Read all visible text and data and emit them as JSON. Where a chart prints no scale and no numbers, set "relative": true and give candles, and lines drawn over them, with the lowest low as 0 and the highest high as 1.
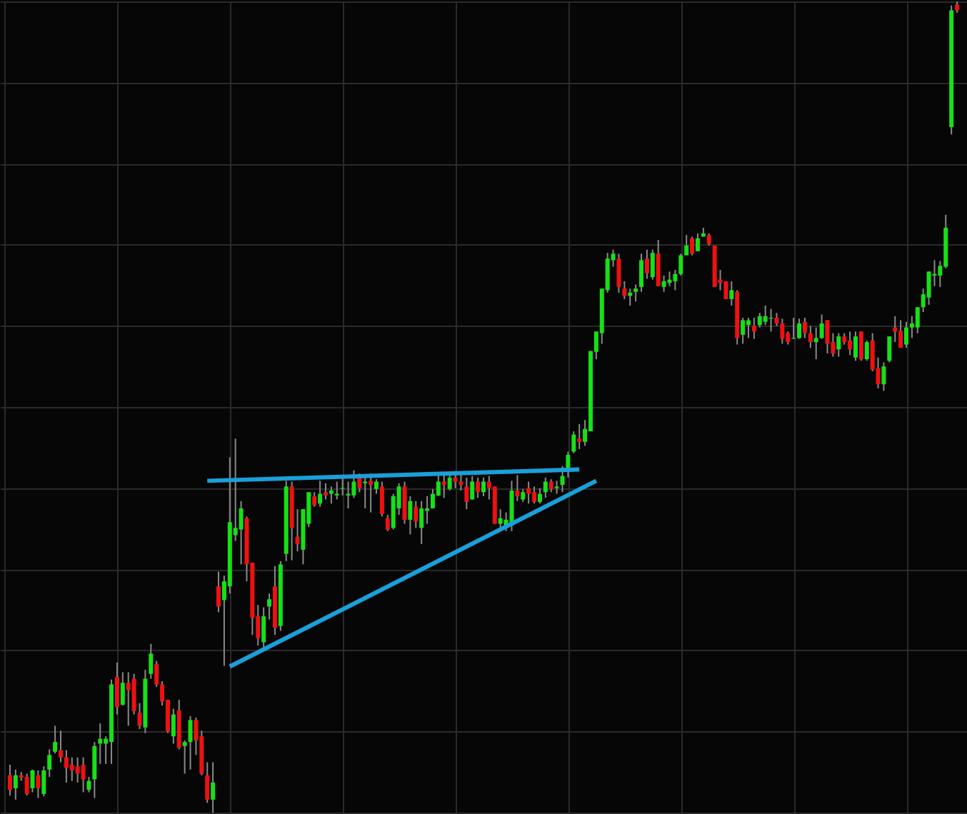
{
  "chart_data": {
    "type": "candlestick",
    "relative": true,
    "grid": true,
    "categories": [
      null,
      null,
      null,
      null,
      null,
      null,
      null,
      null,
      null,
      null,
      null,
      null,
      null,
      null,
      null,
      null,
      null,
      null,
      null,
      null,
      null,
      null,
      null,
      null,
      null,
      null,
      null,
      null,
      null,
      null,
      null,
      null,
      null,
      null,
      null,
      null,
      null,
      null,
      null,
      null,
      null,
      null,
      null,
      null,
      null,
      null,
      null,
      null,
      null,
      null,
      null,
      null,
      null,
      null,
      null,
      null,
      null,
      null,
      null,
      null,
      null,
      null,
      null,
      null,
      null,
      null,
      null,
      null,
      null,
      null,
      null,
      null,
      null,
      null,
      null,
      null,
      null,
      null,
      null,
      null,
      null,
      null,
      null,
      null,
      null,
      null,
      null,
      null,
      null,
      null,
      null,
      null,
      null,
      null,
      null,
      null,
      null,
      null,
      null,
      null,
      null,
      null,
      null,
      null,
      null,
      null,
      null,
      null,
      null,
      null,
      null,
      null,
      null,
      null,
      null,
      null,
      null,
      null,
      null,
      null,
      null,
      null,
      null,
      null,
      null,
      null,
      null,
      null,
      null,
      null,
      null,
      null,
      null,
      null,
      null,
      null,
      null,
      null,
      null,
      null,
      null,
      null,
      null,
      null,
      null,
      null,
      null,
      null,
      null,
      null,
      null,
      null,
      null,
      null,
      null,
      null,
      null,
      null,
      null,
      null,
      null,
      null,
      null,
      null,
      null,
      null,
      null,
      null,
      null
    ],
    "colors": [
      "#ee1111",
      "#16e016",
      "#ee1111",
      "#ee1111",
      "#16e016",
      "#ee1111",
      "#16e016",
      "#16e016",
      "#16e016",
      "#ee1111",
      "#ee1111",
      "#ee1111",
      "#ee1111",
      "#ee1111",
      "#16e016",
      "#16e016",
      "#16e016",
      "#16e016",
      "#16e016",
      "#ee1111",
      "#16e016",
      "#ee1111",
      "#ee1111",
      "#ee1111",
      "#16e016",
      "#16e016",
      "#ee1111",
      "#ee1111",
      "#ee1111",
      "#16e016",
      "#ee1111",
      "#16e016",
      "#16e016",
      "#ee1111",
      "#ee1111",
      "#ee1111",
      "#16e016",
      "#ee1111",
      "#16e016",
      "#16e016",
      "#16e016",
      "#16e016",
      "#ee1111",
      "#ee1111",
      "#ee1111",
      "#16e016",
      "#16e016",
      "#ee1111",
      "#16e016",
      "#16e016",
      "#ee1111",
      "#ee1111",
      "#16e016",
      "#16e016",
      "#ee1111",
      "#16e016",
      "#ee1111",
      "#16e016",
      "#16e016",
      "#16e016",
      "#16e016",
      "#16e016",
      "#ee1111",
      "#16e016",
      "#ee1111",
      "#16e016",
      "#ee1111",
      "#ee1111",
      "#16e016",
      "#16e016",
      "#ee1111",
      "#16e016",
      "#ee1111",
      "#16e016",
      "#16e016",
      "#16e016",
      "#16e016",
      "#ee1111",
      "#16e016",
      "#ee1111",
      "#ee1111",
      "#ee1111",
      "#16e016",
      "#ee1111",
      "#16e016",
      "#ee1111",
      "#ee1111",
      "#16e016",
      "#16e016",
      "#16e016",
      "#ee1111",
      "#16e016",
      "#ee1111",
      "#ee1111",
      "#16e016",
      "#16e016",
      "#ee1111",
      "#16e016",
      "#16e016",
      "#16e016",
      "#16e016",
      "#ee1111",
      "#16e016",
      "#16e016",
      "#16e016",
      "#16e016",
      "#16e016",
      "#16e016",
      "#ee1111",
      "#ee1111",
      "#16e016",
      "#16e016",
      "#16e016",
      "#ee1111",
      "#16e016",
      "#ee1111",
      "#16e016",
      "#16e016",
      "#16e016",
      "#16e016",
      "#16e016",
      "#ee1111",
      "#16e016",
      "#16e016",
      "#ee1111",
      "#ee1111",
      "#ee1111",
      "#ee1111",
      "#16e016",
      "#ee1111",
      "#16e016",
      "#16e016",
      "#ee1111",
      "#16e016",
      "#16e016",
      "#16e016",
      "#ee1111",
      "#ee1111",
      "#ee1111",
      "#16e016",
      "#16e016",
      "#ee1111",
      "#ee1111",
      "#16e016",
      "#16e016",
      "#ee1111",
      "#ee1111",
      "#16e016",
      "#ee1111",
      "#ee1111",
      "#16e016",
      "#ee1111",
      "#16e016",
      "#ee1111",
      "#ee1111",
      "#16e016",
      "#16e016",
      "#ee1111",
      "#ee1111",
      "#16e016",
      "#16e016",
      "#16e016",
      "#16e016",
      "#16e016",
      "#16e016",
      "#16e016",
      "#16e016",
      "#16e016",
      "#ee1111"
    ],
    "ohlc": [
      [
        0.046,
        0.059,
        0.021,
        0.028
      ],
      [
        0.03,
        0.053,
        0.016,
        0.046
      ],
      [
        0.046,
        0.05,
        0.039,
        0.043
      ],
      [
        0.044,
        0.048,
        0.021,
        0.023
      ],
      [
        0.03,
        0.053,
        0.025,
        0.052
      ],
      [
        0.046,
        0.052,
        0.018,
        0.03
      ],
      [
        0.023,
        0.057,
        0.02,
        0.052
      ],
      [
        0.053,
        0.078,
        0.044,
        0.071
      ],
      [
        0.075,
        0.107,
        0.073,
        0.087
      ],
      [
        0.077,
        0.101,
        0.062,
        0.068
      ],
      [
        0.068,
        0.077,
        0.037,
        0.055
      ],
      [
        0.059,
        0.068,
        0.039,
        0.052
      ],
      [
        0.057,
        0.068,
        0.037,
        0.048
      ],
      [
        0.059,
        0.068,
        0.025,
        0.041
      ],
      [
        0.028,
        0.044,
        0.025,
        0.039
      ],
      [
        0.041,
        0.087,
        0.018,
        0.082
      ],
      [
        0.085,
        0.11,
        0.06,
        0.091
      ],
      [
        0.085,
        0.094,
        0.06,
        0.091
      ],
      [
        0.087,
        0.164,
        0.06,
        0.158
      ],
      [
        0.167,
        0.185,
        0.121,
        0.13
      ],
      [
        0.133,
        0.173,
        0.132,
        0.16
      ],
      [
        0.16,
        0.173,
        0.107,
        0.151
      ],
      [
        0.165,
        0.171,
        0.121,
        0.125
      ],
      [
        0.123,
        0.135,
        0.103,
        0.107
      ],
      [
        0.105,
        0.176,
        0.098,
        0.165
      ],
      [
        0.171,
        0.208,
        0.165,
        0.196
      ],
      [
        0.183,
        0.187,
        0.155,
        0.158
      ],
      [
        0.158,
        0.162,
        0.132,
        0.137
      ],
      [
        0.139,
        0.139,
        0.098,
        0.1
      ],
      [
        0.094,
        0.128,
        0.085,
        0.121
      ],
      [
        0.126,
        0.139,
        0.078,
        0.08
      ],
      [
        0.082,
        0.089,
        0.048,
        0.087
      ],
      [
        0.087,
        0.119,
        0.053,
        0.114
      ],
      [
        0.114,
        0.117,
        0.071,
        0.089
      ],
      [
        0.094,
        0.101,
        0.046,
        0.048
      ],
      [
        0.046,
        0.062,
        0.012,
        0.016
      ],
      [
        0.016,
        0.062,
        0.0,
        0.037
      ],
      [
        0.279,
        0.297,
        0.247,
        0.254
      ],
      [
        0.262,
        0.292,
        0.181,
        0.285
      ],
      [
        0.279,
        0.438,
        0.27,
        0.358
      ],
      [
        0.342,
        0.461,
        0.335,
        0.351
      ],
      [
        0.349,
        0.384,
        0.306,
        0.375
      ],
      [
        0.363,
        0.365,
        0.285,
        0.306
      ],
      [
        0.308,
        0.308,
        0.219,
        0.24
      ],
      [
        0.242,
        0.256,
        0.206,
        0.215
      ],
      [
        0.21,
        0.253,
        0.203,
        0.242
      ],
      [
        0.254,
        0.27,
        0.238,
        0.263
      ],
      [
        0.279,
        0.304,
        0.219,
        0.228
      ],
      [
        0.23,
        0.31,
        0.224,
        0.306
      ],
      [
        0.319,
        0.409,
        0.31,
        0.402
      ],
      [
        0.402,
        0.408,
        0.311,
        0.351
      ],
      [
        0.34,
        0.374,
        0.322,
        0.331
      ],
      [
        0.324,
        0.374,
        0.306,
        0.374
      ],
      [
        0.356,
        0.395,
        0.352,
        0.395
      ],
      [
        0.39,
        0.395,
        0.377,
        0.379
      ],
      [
        0.381,
        0.409,
        0.377,
        0.393
      ],
      [
        0.395,
        0.406,
        0.386,
        0.391
      ],
      [
        0.393,
        0.402,
        0.381,
        0.397
      ],
      [
        0.391,
        0.408,
        0.386,
        0.393
      ],
      [
        0.399,
        0.413,
        0.391,
        0.4
      ],
      [
        0.391,
        0.408,
        0.375,
        0.393
      ],
      [
        0.391,
        0.422,
        0.388,
        0.408
      ],
      [
        0.413,
        0.418,
        0.395,
        0.4
      ],
      [
        0.406,
        0.413,
        0.375,
        0.408
      ],
      [
        0.409,
        0.418,
        0.37,
        0.404
      ],
      [
        0.399,
        0.411,
        0.393,
        0.408
      ],
      [
        0.402,
        0.408,
        0.365,
        0.368
      ],
      [
        0.363,
        0.367,
        0.347,
        0.349
      ],
      [
        0.351,
        0.393,
        0.349,
        0.39
      ],
      [
        0.375,
        0.406,
        0.367,
        0.402
      ],
      [
        0.402,
        0.408,
        0.356,
        0.361
      ],
      [
        0.361,
        0.39,
        0.343,
        0.384
      ],
      [
        0.377,
        0.384,
        0.351,
        0.359
      ],
      [
        0.351,
        0.384,
        0.331,
        0.375
      ],
      [
        0.372,
        0.39,
        0.356,
        0.375
      ],
      [
        0.375,
        0.399,
        0.375,
        0.393
      ],
      [
        0.391,
        0.42,
        0.39,
        0.408
      ],
      [
        0.408,
        0.418,
        0.388,
        0.404
      ],
      [
        0.399,
        0.418,
        0.397,
        0.413
      ],
      [
        0.413,
        0.416,
        0.4,
        0.408
      ],
      [
        0.408,
        0.42,
        0.397,
        0.404
      ],
      [
        0.402,
        0.413,
        0.374,
        0.383
      ],
      [
        0.386,
        0.415,
        0.386,
        0.408
      ],
      [
        0.408,
        0.413,
        0.388,
        0.395
      ],
      [
        0.395,
        0.413,
        0.39,
        0.408
      ],
      [
        0.408,
        0.415,
        0.386,
        0.4
      ],
      [
        0.402,
        0.402,
        0.356,
        0.356
      ],
      [
        0.356,
        0.374,
        0.349,
        0.363
      ],
      [
        0.354,
        0.37,
        0.347,
        0.361
      ],
      [
        0.354,
        0.409,
        0.347,
        0.397
      ],
      [
        0.397,
        0.416,
        0.384,
        0.39
      ],
      [
        0.386,
        0.399,
        0.383,
        0.395
      ],
      [
        0.4,
        0.408,
        0.381,
        0.393
      ],
      [
        0.395,
        0.402,
        0.381,
        0.383
      ],
      [
        0.383,
        0.4,
        0.381,
        0.393
      ],
      [
        0.395,
        0.413,
        0.388,
        0.408
      ],
      [
        0.408,
        0.411,
        0.395,
        0.399
      ],
      [
        0.4,
        0.409,
        0.393,
        0.402
      ],
      [
        0.404,
        0.427,
        0.395,
        0.415
      ],
      [
        0.425,
        0.445,
        0.413,
        0.441
      ],
      [
        0.445,
        0.47,
        0.443,
        0.466
      ],
      [
        0.461,
        0.479,
        0.448,
        0.457
      ],
      [
        0.457,
        0.484,
        0.452,
        0.473
      ],
      [
        0.47,
        0.569,
        0.47,
        0.569
      ],
      [
        0.568,
        0.593,
        0.559,
        0.593
      ],
      [
        0.591,
        0.646,
        0.578,
        0.646
      ],
      [
        0.644,
        0.69,
        0.641,
        0.683
      ],
      [
        0.681,
        0.694,
        0.673,
        0.689
      ],
      [
        0.683,
        0.689,
        0.641,
        0.648
      ],
      [
        0.646,
        0.655,
        0.633,
        0.637
      ],
      [
        0.637,
        0.646,
        0.625,
        0.641
      ],
      [
        0.642,
        0.651,
        0.63,
        0.646
      ],
      [
        0.648,
        0.689,
        0.642,
        0.681
      ],
      [
        0.683,
        0.694,
        0.658,
        0.665
      ],
      [
        0.66,
        0.694,
        0.657,
        0.69
      ],
      [
        0.689,
        0.706,
        0.649,
        0.649
      ],
      [
        0.648,
        0.662,
        0.642,
        0.655
      ],
      [
        0.653,
        0.667,
        0.649,
        0.657
      ],
      [
        0.655,
        0.669,
        0.644,
        0.664
      ],
      [
        0.664,
        0.689,
        0.662,
        0.687
      ],
      [
        0.687,
        0.712,
        0.687,
        0.699
      ],
      [
        0.708,
        0.71,
        0.687,
        0.689
      ],
      [
        0.692,
        0.714,
        0.692,
        0.708
      ],
      [
        0.71,
        0.721,
        0.71,
        0.714
      ],
      [
        0.712,
        0.714,
        0.699,
        0.701
      ],
      [
        0.699,
        0.699,
        0.648,
        0.648
      ],
      [
        0.657,
        0.669,
        0.644,
        0.653
      ],
      [
        0.655,
        0.655,
        0.633,
        0.633
      ],
      [
        0.633,
        0.655,
        0.625,
        0.644
      ],
      [
        0.642,
        0.644,
        0.577,
        0.585
      ],
      [
        0.589,
        0.61,
        0.578,
        0.607
      ],
      [
        0.601,
        0.61,
        0.585,
        0.607
      ],
      [
        0.6,
        0.61,
        0.584,
        0.593
      ],
      [
        0.601,
        0.616,
        0.598,
        0.612
      ],
      [
        0.605,
        0.625,
        0.601,
        0.612
      ],
      [
        0.609,
        0.621,
        0.593,
        0.61
      ],
      [
        0.61,
        0.616,
        0.6,
        0.603
      ],
      [
        0.603,
        0.609,
        0.578,
        0.584
      ],
      [
        0.591,
        0.593,
        0.577,
        0.58
      ],
      [
        0.584,
        0.61,
        0.584,
        0.585
      ],
      [
        0.585,
        0.609,
        0.584,
        0.603
      ],
      [
        0.605,
        0.61,
        0.585,
        0.591
      ],
      [
        0.591,
        0.6,
        0.573,
        0.58
      ],
      [
        0.58,
        0.598,
        0.559,
        0.585
      ],
      [
        0.585,
        0.614,
        0.584,
        0.603
      ],
      [
        0.607,
        0.607,
        0.566,
        0.578
      ],
      [
        0.58,
        0.591,
        0.562,
        0.566
      ],
      [
        0.571,
        0.591,
        0.562,
        0.587
      ],
      [
        0.587,
        0.591,
        0.577,
        0.58
      ],
      [
        0.582,
        0.593,
        0.564,
        0.571
      ],
      [
        0.561,
        0.593,
        0.557,
        0.587
      ],
      [
        0.593,
        0.593,
        0.557,
        0.559
      ],
      [
        0.559,
        0.582,
        0.557,
        0.58
      ],
      [
        0.582,
        0.591,
        0.544,
        0.546
      ],
      [
        0.548,
        0.561,
        0.523,
        0.528
      ],
      [
        0.528,
        0.555,
        0.52,
        0.55
      ],
      [
        0.557,
        0.587,
        0.555,
        0.587
      ],
      [
        0.598,
        0.612,
        0.58,
        0.593
      ],
      [
        0.594,
        0.607,
        0.573,
        0.573
      ],
      [
        0.577,
        0.605,
        0.573,
        0.598
      ],
      [
        0.598,
        0.612,
        0.585,
        0.603
      ],
      [
        0.598,
        0.623,
        0.591,
        0.623
      ],
      [
        0.623,
        0.646,
        0.617,
        0.639
      ],
      [
        0.635,
        0.667,
        0.626,
        0.667
      ],
      [
        0.662,
        0.681,
        0.649,
        0.664
      ],
      [
        0.662,
        0.68,
        0.648,
        0.674
      ],
      [
        0.673,
        0.737,
        0.671,
        0.721
      ],
      [
        0.845,
        0.995,
        0.836,
        0.989
      ],
      [
        0.996,
        1.0,
        0.986,
        0.989
      ]
    ],
    "series": [
      {
        "type": "line",
        "color": "#1a9fd9",
        "values": [
          null,
          null,
          null,
          null,
          null,
          null,
          null,
          null,
          null,
          null,
          null,
          null,
          null,
          null,
          null,
          null,
          null,
          null,
          null,
          null,
          null,
          null,
          null,
          null,
          null,
          null,
          null,
          null,
          null,
          null,
          null,
          null,
          null,
          null,
          null,
          0.409,
          null,
          null,
          null,
          null,
          null,
          null,
          null,
          null,
          null,
          null,
          null,
          null,
          null,
          null,
          null,
          null,
          null,
          null,
          null,
          null,
          null,
          null,
          null,
          null,
          null,
          null,
          null,
          null,
          null,
          null,
          null,
          null,
          null,
          null,
          null,
          null,
          null,
          null,
          null,
          null,
          null,
          null,
          null,
          null,
          null,
          null,
          null,
          null,
          null,
          null,
          null,
          null,
          null,
          null,
          null,
          null,
          null,
          null,
          null,
          null,
          null,
          null,
          null,
          null,
          null,
          0.423,
          null,
          null,
          null,
          null,
          null,
          null,
          null,
          null,
          null,
          null,
          null,
          null,
          null,
          null,
          null,
          null,
          null,
          null,
          null,
          null,
          null,
          null,
          null,
          null,
          null,
          null,
          null,
          null,
          null,
          null,
          null,
          null,
          null,
          null,
          null,
          null,
          null,
          null,
          null,
          null,
          null,
          null,
          null,
          null,
          null,
          null,
          null,
          null,
          null,
          null,
          null,
          null,
          null,
          null,
          null,
          null,
          null,
          null,
          null,
          null,
          null,
          null,
          null,
          null,
          null,
          null,
          null
        ]
      },
      {
        "type": "line",
        "color": "#1a9fd9",
        "values": [
          null,
          null,
          null,
          null,
          null,
          null,
          null,
          null,
          null,
          null,
          null,
          null,
          null,
          null,
          null,
          null,
          null,
          null,
          null,
          null,
          null,
          null,
          null,
          null,
          null,
          null,
          null,
          null,
          null,
          null,
          null,
          null,
          null,
          null,
          null,
          null,
          null,
          null,
          null,
          0.18,
          null,
          null,
          null,
          null,
          null,
          null,
          null,
          null,
          null,
          null,
          null,
          null,
          null,
          null,
          null,
          null,
          null,
          null,
          null,
          null,
          null,
          null,
          null,
          null,
          null,
          null,
          null,
          null,
          null,
          null,
          null,
          null,
          null,
          null,
          null,
          null,
          null,
          null,
          null,
          null,
          null,
          null,
          null,
          null,
          null,
          null,
          null,
          null,
          null,
          null,
          null,
          null,
          null,
          null,
          null,
          null,
          null,
          null,
          null,
          null,
          null,
          null,
          null,
          null,
          0.409,
          null,
          null,
          null,
          null,
          null,
          null,
          null,
          null,
          null,
          null,
          null,
          null,
          null,
          null,
          null,
          null,
          null,
          null,
          null,
          null,
          null,
          null,
          null,
          null,
          null,
          null,
          null,
          null,
          null,
          null,
          null,
          null,
          null,
          null,
          null,
          null,
          null,
          null,
          null,
          null,
          null,
          null,
          null,
          null,
          null,
          null,
          null,
          null,
          null,
          null,
          null,
          null,
          null,
          null,
          null,
          null,
          null,
          null,
          null,
          null,
          null,
          null,
          null,
          null
        ]
      }
    ]
  }
}
